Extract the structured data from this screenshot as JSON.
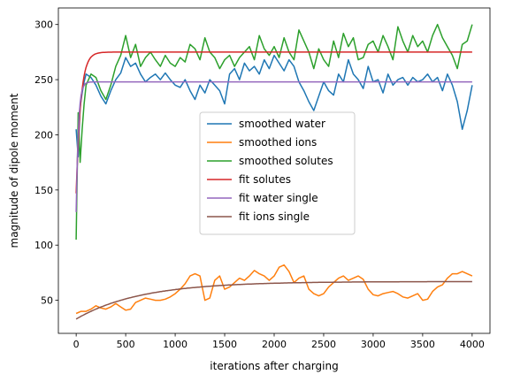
{
  "chart_data": {
    "type": "line",
    "title": "",
    "xlabel": "iterations after charging",
    "ylabel": "magnitude of dipole moment",
    "xlim": [
      -180,
      4180
    ],
    "ylim": [
      20,
      315
    ],
    "xticks": [
      0,
      500,
      1000,
      1500,
      2000,
      2500,
      3000,
      3500,
      4000
    ],
    "yticks": [
      50,
      100,
      150,
      200,
      250,
      300
    ],
    "grid": false,
    "legend_position": "center",
    "series": [
      {
        "name": "smoothed water",
        "color": "#1f77b4",
        "x": [
          0,
          20,
          40,
          60,
          80,
          100,
          150,
          200,
          250,
          300,
          350,
          400,
          450,
          500,
          550,
          600,
          650,
          700,
          750,
          800,
          850,
          900,
          950,
          1000,
          1050,
          1100,
          1150,
          1200,
          1250,
          1300,
          1350,
          1400,
          1450,
          1500,
          1550,
          1600,
          1650,
          1700,
          1750,
          1800,
          1850,
          1900,
          1950,
          2000,
          2050,
          2100,
          2150,
          2200,
          2250,
          2300,
          2350,
          2400,
          2450,
          2500,
          2550,
          2600,
          2650,
          2700,
          2750,
          2800,
          2850,
          2900,
          2950,
          3000,
          3050,
          3100,
          3150,
          3200,
          3250,
          3300,
          3350,
          3400,
          3450,
          3500,
          3550,
          3600,
          3650,
          3700,
          3750,
          3800,
          3850,
          3900,
          3950,
          4000
        ],
        "y": [
          205,
          180,
          225,
          238,
          248,
          255,
          252,
          245,
          235,
          228,
          240,
          250,
          256,
          270,
          262,
          265,
          255,
          248,
          252,
          255,
          250,
          256,
          250,
          245,
          243,
          250,
          240,
          232,
          245,
          238,
          250,
          245,
          240,
          228,
          255,
          260,
          250,
          265,
          258,
          262,
          255,
          268,
          260,
          272,
          265,
          258,
          268,
          262,
          248,
          240,
          230,
          222,
          235,
          248,
          240,
          236,
          255,
          248,
          268,
          255,
          250,
          242,
          262,
          248,
          250,
          238,
          255,
          245,
          250,
          252,
          245,
          252,
          248,
          250,
          255,
          248,
          252,
          240,
          255,
          245,
          230,
          205,
          222,
          245
        ]
      },
      {
        "name": "smoothed ions",
        "color": "#ff7f0e",
        "x": [
          0,
          50,
          100,
          150,
          200,
          250,
          300,
          350,
          400,
          450,
          500,
          550,
          600,
          650,
          700,
          750,
          800,
          850,
          900,
          950,
          1000,
          1050,
          1100,
          1150,
          1200,
          1250,
          1300,
          1350,
          1400,
          1450,
          1500,
          1550,
          1600,
          1650,
          1700,
          1750,
          1800,
          1850,
          1900,
          1950,
          2000,
          2050,
          2100,
          2150,
          2200,
          2250,
          2300,
          2350,
          2400,
          2450,
          2500,
          2550,
          2600,
          2650,
          2700,
          2750,
          2800,
          2850,
          2900,
          2950,
          3000,
          3050,
          3100,
          3150,
          3200,
          3250,
          3300,
          3350,
          3400,
          3450,
          3500,
          3550,
          3600,
          3650,
          3700,
          3750,
          3800,
          3850,
          3900,
          3950,
          4000
        ],
        "y": [
          38,
          40,
          40,
          42,
          45,
          43,
          42,
          44,
          47,
          44,
          41,
          42,
          48,
          50,
          52,
          51,
          50,
          50,
          51,
          53,
          56,
          60,
          65,
          72,
          74,
          72,
          50,
          52,
          68,
          72,
          60,
          62,
          66,
          70,
          68,
          72,
          77,
          74,
          72,
          68,
          72,
          80,
          82,
          76,
          66,
          70,
          72,
          60,
          56,
          54,
          56,
          62,
          66,
          70,
          72,
          68,
          70,
          72,
          69,
          60,
          55,
          54,
          56,
          57,
          58,
          56,
          53,
          52,
          54,
          56,
          50,
          51,
          58,
          62,
          64,
          70,
          74,
          74,
          76,
          74,
          72
        ]
      },
      {
        "name": "smoothed solutes",
        "color": "#2ca02c",
        "x": [
          0,
          20,
          40,
          60,
          80,
          100,
          150,
          200,
          250,
          300,
          350,
          400,
          450,
          500,
          550,
          600,
          650,
          700,
          750,
          800,
          850,
          900,
          950,
          1000,
          1050,
          1100,
          1150,
          1200,
          1250,
          1300,
          1350,
          1400,
          1450,
          1500,
          1550,
          1600,
          1650,
          1700,
          1750,
          1800,
          1850,
          1900,
          1950,
          2000,
          2050,
          2100,
          2150,
          2200,
          2250,
          2300,
          2350,
          2400,
          2450,
          2500,
          2550,
          2600,
          2650,
          2700,
          2750,
          2800,
          2850,
          2900,
          2950,
          3000,
          3050,
          3100,
          3150,
          3200,
          3250,
          3300,
          3350,
          3400,
          3450,
          3500,
          3550,
          3600,
          3650,
          3700,
          3750,
          3800,
          3850,
          3900,
          3950,
          4000
        ],
        "y": [
          105,
          220,
          175,
          205,
          228,
          245,
          255,
          252,
          240,
          232,
          245,
          262,
          272,
          290,
          270,
          282,
          262,
          270,
          275,
          268,
          262,
          272,
          265,
          262,
          270,
          266,
          282,
          278,
          268,
          288,
          275,
          270,
          260,
          268,
          272,
          262,
          270,
          275,
          280,
          268,
          290,
          278,
          272,
          280,
          270,
          288,
          275,
          268,
          295,
          285,
          275,
          260,
          278,
          268,
          262,
          285,
          270,
          292,
          280,
          288,
          268,
          270,
          282,
          285,
          275,
          290,
          280,
          268,
          298,
          285,
          275,
          290,
          280,
          285,
          275,
          290,
          300,
          288,
          280,
          272,
          260,
          282,
          285,
          300
        ]
      },
      {
        "name": "fit solutes",
        "color": "#d62728",
        "fit": {
          "a": 275,
          "b": 128,
          "tau": 45
        }
      },
      {
        "name": "fit water single",
        "color": "#9467bd",
        "fit": {
          "a": 248,
          "b": 118,
          "tau": 22
        }
      },
      {
        "name": "fit ions single",
        "color": "#8c564b",
        "fit": {
          "a": 67,
          "b": 34,
          "tau": 650
        }
      }
    ]
  }
}
